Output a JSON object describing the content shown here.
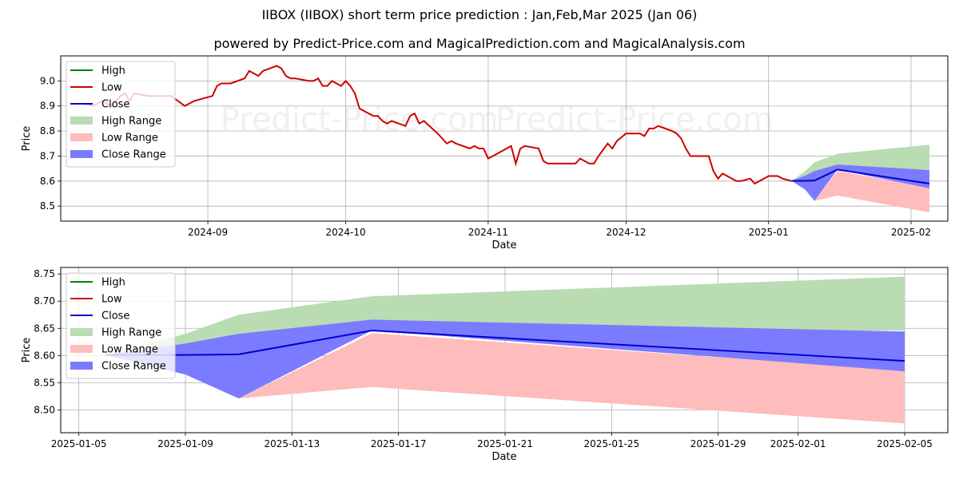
{
  "title": "IIBOX (IIBOX) short term price prediction : Jan,Feb,Mar 2025 (Jan 06)",
  "subtitle": "powered by Predict-Price.com and MagicalPrediction.com and MagicalAnalysis.com",
  "watermark": "Predict-Price.com",
  "colors": {
    "high": "#008000",
    "low": "#cc0000",
    "close": "#0000cc",
    "high_range": "#b9dcb3",
    "low_range": "#ffbcbc",
    "close_range": "#7b7bff"
  },
  "chart_data": [
    {
      "type": "line",
      "xlabel": "Date",
      "ylabel": "Price",
      "ylim": [
        8.44,
        9.1
      ],
      "xlim": [
        "2024-07-31",
        "2025-02-09"
      ],
      "yticks": [
        8.5,
        8.6,
        8.7,
        8.8,
        8.9,
        9.0
      ],
      "ytick_labels": [
        "8.5",
        "8.6",
        "8.7",
        "8.8",
        "8.9",
        "9.0"
      ],
      "xticks": [
        "2024-09-01",
        "2024-10-01",
        "2024-11-01",
        "2024-12-01",
        "2025-01-01",
        "2025-02-01"
      ],
      "xtick_labels": [
        "2024-09",
        "2024-10",
        "2024-11",
        "2024-12",
        "2025-01",
        "2025-02"
      ],
      "legend": [
        "High",
        "Low",
        "Close",
        "High Range",
        "Low Range",
        "Close Range"
      ],
      "legend_position": "top-left",
      "history_low": [
        [
          "2024-08-05",
          8.91
        ],
        [
          "2024-08-07",
          8.9
        ],
        [
          "2024-08-09",
          8.92
        ],
        [
          "2024-08-11",
          8.9
        ],
        [
          "2024-08-13",
          8.94
        ],
        [
          "2024-08-14",
          8.95
        ],
        [
          "2024-08-15",
          8.92
        ],
        [
          "2024-08-16",
          8.95
        ],
        [
          "2024-08-19",
          8.94
        ],
        [
          "2024-08-21",
          8.94
        ],
        [
          "2024-08-24",
          8.94
        ],
        [
          "2024-08-27",
          8.9
        ],
        [
          "2024-08-29",
          8.92
        ],
        [
          "2024-08-31",
          8.93
        ],
        [
          "2024-09-02",
          8.94
        ],
        [
          "2024-09-03",
          8.98
        ],
        [
          "2024-09-04",
          8.99
        ],
        [
          "2024-09-06",
          8.99
        ],
        [
          "2024-09-09",
          9.01
        ],
        [
          "2024-09-10",
          9.04
        ],
        [
          "2024-09-12",
          9.02
        ],
        [
          "2024-09-13",
          9.04
        ],
        [
          "2024-09-16",
          9.06
        ],
        [
          "2024-09-17",
          9.05
        ],
        [
          "2024-09-18",
          9.02
        ],
        [
          "2024-09-19",
          9.01
        ],
        [
          "2024-09-20",
          9.01
        ],
        [
          "2024-09-23",
          9.0
        ],
        [
          "2024-09-24",
          9.0
        ],
        [
          "2024-09-25",
          9.01
        ],
        [
          "2024-09-26",
          8.98
        ],
        [
          "2024-09-27",
          8.98
        ],
        [
          "2024-09-28",
          9.0
        ],
        [
          "2024-09-30",
          8.98
        ],
        [
          "2024-10-01",
          9.0
        ],
        [
          "2024-10-02",
          8.98
        ],
        [
          "2024-10-03",
          8.95
        ],
        [
          "2024-10-04",
          8.89
        ],
        [
          "2024-10-07",
          8.86
        ],
        [
          "2024-10-08",
          8.86
        ],
        [
          "2024-10-09",
          8.84
        ],
        [
          "2024-10-10",
          8.83
        ],
        [
          "2024-10-11",
          8.84
        ],
        [
          "2024-10-14",
          8.82
        ],
        [
          "2024-10-15",
          8.86
        ],
        [
          "2024-10-16",
          8.87
        ],
        [
          "2024-10-17",
          8.83
        ],
        [
          "2024-10-18",
          8.84
        ],
        [
          "2024-10-21",
          8.79
        ],
        [
          "2024-10-22",
          8.77
        ],
        [
          "2024-10-23",
          8.75
        ],
        [
          "2024-10-24",
          8.76
        ],
        [
          "2024-10-25",
          8.75
        ],
        [
          "2024-10-28",
          8.73
        ],
        [
          "2024-10-29",
          8.74
        ],
        [
          "2024-10-30",
          8.73
        ],
        [
          "2024-10-31",
          8.73
        ],
        [
          "2024-11-01",
          8.69
        ],
        [
          "2024-11-04",
          8.72
        ],
        [
          "2024-11-06",
          8.74
        ],
        [
          "2024-11-07",
          8.67
        ],
        [
          "2024-11-08",
          8.73
        ],
        [
          "2024-11-09",
          8.74
        ],
        [
          "2024-11-12",
          8.73
        ],
        [
          "2024-11-13",
          8.68
        ],
        [
          "2024-11-14",
          8.67
        ],
        [
          "2024-11-15",
          8.67
        ],
        [
          "2024-11-20",
          8.67
        ],
        [
          "2024-11-21",
          8.69
        ],
        [
          "2024-11-23",
          8.67
        ],
        [
          "2024-11-24",
          8.67
        ],
        [
          "2024-11-25",
          8.7
        ],
        [
          "2024-11-27",
          8.75
        ],
        [
          "2024-11-28",
          8.73
        ],
        [
          "2024-11-29",
          8.76
        ],
        [
          "2024-12-01",
          8.79
        ],
        [
          "2024-12-04",
          8.79
        ],
        [
          "2024-12-05",
          8.78
        ],
        [
          "2024-12-06",
          8.81
        ],
        [
          "2024-12-07",
          8.81
        ],
        [
          "2024-12-08",
          8.82
        ],
        [
          "2024-12-11",
          8.8
        ],
        [
          "2024-12-12",
          8.79
        ],
        [
          "2024-12-13",
          8.77
        ],
        [
          "2024-12-14",
          8.73
        ],
        [
          "2024-12-15",
          8.7
        ],
        [
          "2024-12-19",
          8.7
        ],
        [
          "2024-12-20",
          8.64
        ],
        [
          "2024-12-21",
          8.61
        ],
        [
          "2024-12-22",
          8.63
        ],
        [
          "2024-12-23",
          8.62
        ],
        [
          "2024-12-25",
          8.6
        ],
        [
          "2024-12-26",
          8.6
        ],
        [
          "2024-12-28",
          8.61
        ],
        [
          "2024-12-29",
          8.59
        ],
        [
          "2024-12-31",
          8.61
        ],
        [
          "2025-01-01",
          8.62
        ],
        [
          "2025-01-03",
          8.62
        ],
        [
          "2025-01-04",
          8.61
        ],
        [
          "2025-01-06",
          8.6
        ]
      ],
      "forecast_dates": [
        "2025-01-06",
        "2025-01-09",
        "2025-01-11",
        "2025-01-16",
        "2025-02-05"
      ],
      "forecast": {
        "close": [
          8.601,
          8.601,
          8.602,
          8.646,
          8.59
        ],
        "high_range_upper": [
          8.601,
          8.64,
          8.675,
          8.709,
          8.745
        ],
        "high_range_lower": [
          8.601,
          8.61,
          8.625,
          8.646,
          8.646
        ],
        "close_range_upper": [
          8.601,
          8.622,
          8.64,
          8.666,
          8.644
        ],
        "close_range_lower": [
          8.601,
          8.565,
          8.521,
          8.646,
          8.571
        ],
        "low_range_upper": [
          null,
          null,
          8.521,
          8.641,
          8.573
        ],
        "low_range_lower": [
          null,
          null,
          8.521,
          8.542,
          8.475
        ]
      }
    },
    {
      "type": "line",
      "xlabel": "Date",
      "ylabel": "Price",
      "ylim": [
        8.458,
        8.762
      ],
      "xlim": [
        "2025-01-04.32",
        "2025-02-06.62"
      ],
      "yticks": [
        8.5,
        8.55,
        8.6,
        8.65,
        8.7,
        8.75
      ],
      "ytick_labels": [
        "8.50",
        "8.55",
        "8.60",
        "8.65",
        "8.70",
        "8.75"
      ],
      "xticks": [
        "2025-01-05",
        "2025-01-09",
        "2025-01-13",
        "2025-01-17",
        "2025-01-21",
        "2025-01-25",
        "2025-01-29",
        "2025-02-01",
        "2025-02-05"
      ],
      "xtick_labels": [
        "2025-01-05",
        "2025-01-09",
        "2025-01-13",
        "2025-01-17",
        "2025-01-21",
        "2025-01-25",
        "2025-01-29",
        "2025-02-01",
        "2025-02-05"
      ],
      "legend": [
        "High",
        "Low",
        "Close",
        "High Range",
        "Low Range",
        "Close Range"
      ],
      "legend_position": "top-left"
    }
  ]
}
